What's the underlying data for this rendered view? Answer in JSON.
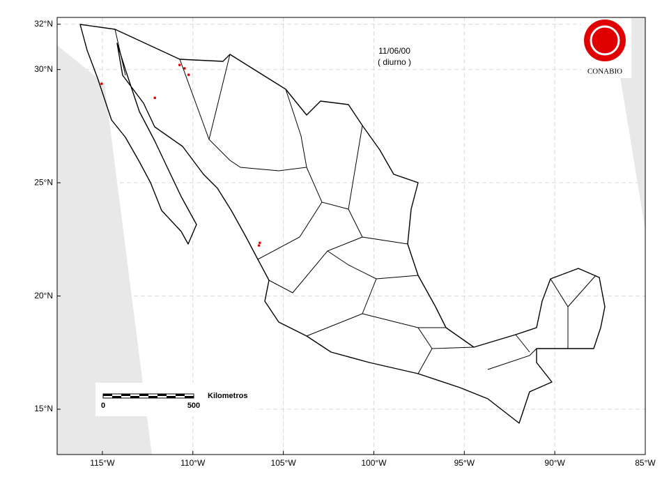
{
  "chart_data": {
    "type": "map",
    "title": "11/06/00",
    "subtitle": "( diurno )",
    "logo": "CONABIO",
    "xlim": [
      -117.5,
      -85
    ],
    "ylim": [
      13,
      32.3
    ],
    "xticks": [
      {
        "value": -115,
        "label": "115°W"
      },
      {
        "value": -110,
        "label": "110°W"
      },
      {
        "value": -105,
        "label": "105°W"
      },
      {
        "value": -100,
        "label": "100°W"
      },
      {
        "value": -95,
        "label": "95°W"
      },
      {
        "value": -90,
        "label": "90°W"
      },
      {
        "value": -85,
        "label": "85°W"
      }
    ],
    "yticks": [
      {
        "value": 15,
        "label": "15°N"
      },
      {
        "value": 20,
        "label": "20°N"
      },
      {
        "value": 25,
        "label": "25°N"
      },
      {
        "value": 30,
        "label": "30°N"
      },
      {
        "value": 32,
        "label": "32°N"
      }
    ],
    "grid": true,
    "hotspots": {
      "color": "#e00000",
      "lon": [
        -110.73,
        -110.46,
        -110.23,
        -112.1,
        -106.3,
        -106.35,
        -115.04
      ],
      "lat": [
        30.2,
        30.05,
        29.77,
        28.75,
        22.35,
        22.23,
        29.37
      ]
    },
    "scale": {
      "label": "Kilometros",
      "ticks": [
        0,
        500
      ]
    }
  }
}
